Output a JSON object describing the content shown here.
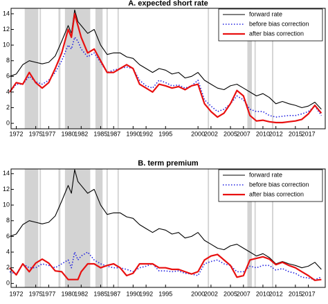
{
  "chart_data": [
    {
      "type": "line",
      "title": "A. expected short rate",
      "legend": "upper right",
      "x": [
        1971,
        1972,
        1973,
        1974,
        1975,
        1976,
        1977,
        1978,
        1979,
        1980,
        1980.5,
        1981,
        1981.5,
        1982,
        1983,
        1984,
        1985,
        1986,
        1987,
        1988,
        1989,
        1990,
        1991,
        1992,
        1993,
        1994,
        1995,
        1996,
        1997,
        1998,
        1999,
        2000,
        2001,
        2002,
        2003,
        2004,
        2005,
        2006,
        2007,
        2008,
        2009,
        2010,
        2011,
        2012,
        2013,
        2014,
        2015,
        2016,
        2017,
        2018,
        2019
      ],
      "series": [
        {
          "name": "forward rate",
          "color": "#000000",
          "style": "solid",
          "values": [
            6.0,
            6.3,
            7.5,
            8.0,
            7.8,
            7.6,
            7.8,
            8.6,
            10.5,
            12.5,
            11.5,
            14.5,
            13.0,
            12.5,
            11.5,
            12.0,
            10.0,
            8.8,
            9.0,
            9.0,
            8.5,
            8.3,
            7.5,
            7.0,
            6.5,
            7.0,
            6.8,
            6.3,
            6.5,
            5.8,
            6.0,
            6.5,
            5.5,
            5.0,
            4.5,
            4.3,
            4.8,
            5.0,
            4.5,
            4.0,
            3.5,
            3.8,
            3.3,
            2.5,
            2.8,
            2.5,
            2.3,
            2.0,
            2.2,
            2.7,
            1.8
          ]
        },
        {
          "name": "before bias correction",
          "color": "#1f1fe0",
          "style": "dotted",
          "values": [
            4.0,
            5.0,
            5.0,
            6.0,
            5.3,
            5.0,
            5.5,
            6.5,
            8.0,
            10.0,
            9.5,
            11.0,
            10.5,
            9.5,
            8.5,
            9.0,
            7.8,
            6.5,
            6.8,
            7.0,
            7.2,
            7.0,
            5.5,
            4.8,
            4.5,
            5.5,
            5.2,
            4.8,
            4.9,
            4.5,
            4.8,
            5.5,
            3.0,
            2.2,
            1.5,
            1.8,
            2.5,
            3.5,
            3.0,
            1.8,
            1.5,
            1.5,
            1.0,
            0.8,
            0.9,
            1.0,
            1.0,
            1.2,
            1.5,
            2.2,
            1.0
          ]
        },
        {
          "name": "after bias correction",
          "color": "#e81010",
          "style": "thick",
          "values": [
            4.0,
            5.2,
            5.0,
            6.5,
            5.2,
            4.5,
            5.2,
            7.0,
            9.0,
            12.0,
            11.0,
            14.0,
            12.5,
            11.0,
            9.0,
            9.5,
            8.0,
            6.5,
            6.5,
            7.0,
            7.5,
            7.0,
            5.0,
            4.5,
            4.0,
            5.0,
            4.8,
            4.5,
            4.7,
            4.3,
            4.8,
            5.0,
            2.5,
            1.5,
            0.8,
            1.3,
            2.5,
            4.2,
            3.5,
            1.0,
            0.3,
            0.4,
            0.2,
            0.1,
            0.1,
            0.2,
            0.3,
            0.5,
            1.2,
            2.3,
            1.3
          ]
        }
      ],
      "shaded": [
        [
          1973.3,
          1975.4
        ],
        [
          1975.6,
          1975.8
        ],
        [
          1978.5,
          1978.8
        ],
        [
          1979.5,
          1983.4
        ],
        [
          1984.2,
          1985.3
        ],
        [
          1985.9,
          1986.1
        ],
        [
          1987.6,
          1987.8
        ],
        [
          2001.5,
          2001.7
        ],
        [
          2007.6,
          2008.3
        ],
        [
          2008.7,
          2008.9
        ],
        [
          2011.4,
          2011.6
        ]
      ],
      "xlim": [
        1971.2,
        2019.6
      ],
      "xticks": [
        1972,
        1975,
        1977,
        1980,
        1982,
        1985,
        1987,
        1990,
        1992,
        1995,
        2000,
        2002,
        2005,
        2007,
        2010,
        2012,
        2015,
        2017
      ],
      "ylim": [
        -0.7,
        14.7
      ],
      "yticks": [
        0,
        2,
        4,
        6,
        8,
        10,
        12,
        14
      ]
    },
    {
      "type": "line",
      "title": "B. term premium",
      "legend": "upper right",
      "x": [
        1971,
        1972,
        1973,
        1974,
        1975,
        1976,
        1977,
        1978,
        1979,
        1980,
        1980.5,
        1981,
        1981.5,
        1982,
        1983,
        1984,
        1985,
        1986,
        1987,
        1988,
        1989,
        1990,
        1991,
        1992,
        1993,
        1994,
        1995,
        1996,
        1997,
        1998,
        1999,
        2000,
        2001,
        2002,
        2003,
        2004,
        2005,
        2006,
        2007,
        2008,
        2009,
        2010,
        2011,
        2012,
        2013,
        2014,
        2015,
        2016,
        2017,
        2018,
        2019
      ],
      "series": [
        {
          "name": "forward rate",
          "color": "#000000",
          "style": "solid",
          "values": [
            6.0,
            6.3,
            7.5,
            8.0,
            7.8,
            7.6,
            7.8,
            8.6,
            10.5,
            12.5,
            11.5,
            14.5,
            13.0,
            12.5,
            11.5,
            12.0,
            10.0,
            8.8,
            9.0,
            9.0,
            8.5,
            8.3,
            7.5,
            7.0,
            6.5,
            7.0,
            6.8,
            6.3,
            6.5,
            5.8,
            6.0,
            6.5,
            5.5,
            5.0,
            4.5,
            4.3,
            4.8,
            5.0,
            4.5,
            4.0,
            3.5,
            3.8,
            3.3,
            2.5,
            2.8,
            2.5,
            2.3,
            2.0,
            2.2,
            2.7,
            1.8
          ]
        },
        {
          "name": "before bias correction",
          "color": "#1f1fe0",
          "style": "dotted",
          "values": [
            1.5,
            1.2,
            2.5,
            2.0,
            2.0,
            2.5,
            2.3,
            2.0,
            2.5,
            3.0,
            2.0,
            4.0,
            3.0,
            3.5,
            4.0,
            3.0,
            2.5,
            2.2,
            2.0,
            2.0,
            1.8,
            1.5,
            2.0,
            2.2,
            2.5,
            1.6,
            1.6,
            1.5,
            1.6,
            1.3,
            1.2,
            1.0,
            2.5,
            2.8,
            3.0,
            2.5,
            2.3,
            1.5,
            1.5,
            2.2,
            2.0,
            2.3,
            2.3,
            1.7,
            1.9,
            1.5,
            1.3,
            0.8,
            0.7,
            0.5,
            0.8
          ]
        },
        {
          "name": "after bias correction",
          "color": "#e81010",
          "style": "thick",
          "values": [
            2.0,
            1.1,
            2.5,
            1.5,
            2.6,
            3.1,
            2.6,
            1.6,
            1.5,
            0.5,
            0.5,
            0.5,
            0.5,
            1.5,
            2.5,
            2.5,
            2.0,
            2.3,
            2.5,
            2.0,
            1.0,
            1.3,
            2.5,
            2.5,
            2.5,
            2.0,
            2.0,
            1.8,
            1.8,
            1.5,
            1.2,
            1.5,
            3.0,
            3.5,
            3.7,
            3.0,
            2.3,
            0.8,
            1.0,
            3.0,
            3.2,
            3.4,
            3.1,
            2.4,
            2.7,
            2.3,
            2.0,
            1.5,
            1.0,
            0.4,
            0.5
          ]
        }
      ],
      "shaded": [
        [
          1973.3,
          1975.4
        ],
        [
          1975.6,
          1975.8
        ],
        [
          1978.5,
          1978.8
        ],
        [
          1979.5,
          1983.4
        ],
        [
          1984.2,
          1985.3
        ],
        [
          1985.9,
          1986.1
        ],
        [
          1987.6,
          1987.8
        ],
        [
          2001.5,
          2001.7
        ],
        [
          2007.6,
          2008.3
        ],
        [
          2008.7,
          2008.9
        ],
        [
          2011.4,
          2011.6
        ]
      ],
      "xlim": [
        1971.2,
        2019.6
      ],
      "xticks": [
        1972,
        1975,
        1977,
        1980,
        1982,
        1985,
        1987,
        1990,
        1992,
        1995,
        2000,
        2002,
        2005,
        2007,
        2010,
        2012,
        2015,
        2017
      ],
      "ylim": [
        -0.5,
        14.6
      ],
      "yticks": [
        0,
        2,
        4,
        6,
        8,
        10,
        12,
        14
      ]
    }
  ]
}
